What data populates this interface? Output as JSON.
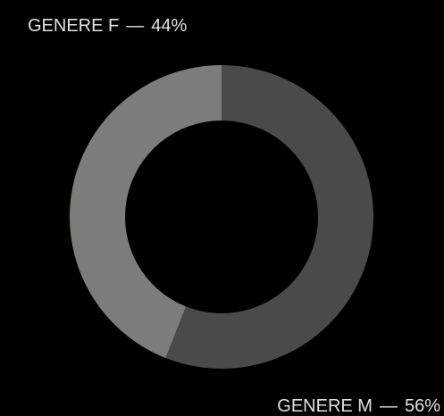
{
  "chart_data": {
    "type": "donut",
    "categories": [
      "GENERE F",
      "GENERE M"
    ],
    "values": [
      44,
      56
    ],
    "value_labels": [
      "44%",
      "56%"
    ],
    "separator": "—",
    "colors": [
      "#7c7c7b",
      "#4a4a48"
    ]
  }
}
